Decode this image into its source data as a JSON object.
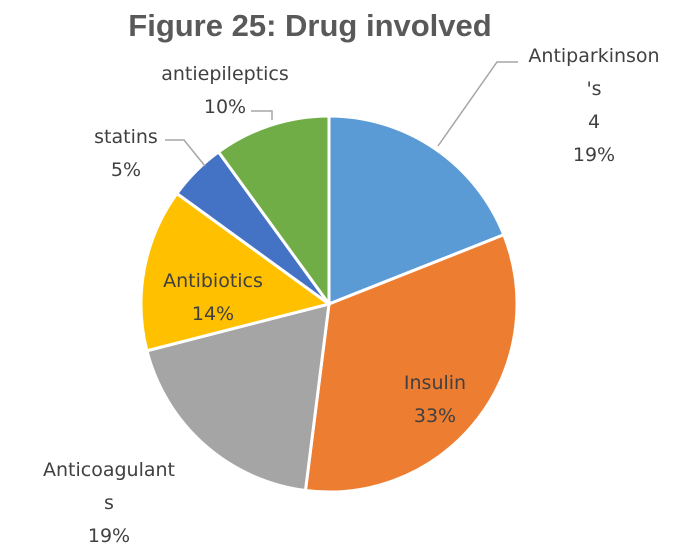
{
  "chart_data": {
    "type": "pie",
    "title": "Figure 25: Drug involved",
    "start_angle_deg": 0,
    "direction": "clockwise",
    "slices": [
      {
        "label": "Antiparkinson's 4",
        "label_lines": [
          "Antiparkinson",
          "'s",
          "4"
        ],
        "value": 19,
        "percent_label": "19%",
        "color": "#5b9bd5"
      },
      {
        "label": "Insulin",
        "label_lines": [
          "Insulin"
        ],
        "value": 33,
        "percent_label": "33%",
        "color": "#ed7d31"
      },
      {
        "label": "Anticoagulants",
        "label_lines": [
          "Anticoagulant",
          "s"
        ],
        "value": 19,
        "percent_label": "19%",
        "color": "#a5a5a5"
      },
      {
        "label": "Antibiotics",
        "label_lines": [
          "Antibiotics"
        ],
        "value": 14,
        "percent_label": "14%",
        "color": "#ffc000"
      },
      {
        "label": "statins",
        "label_lines": [
          "statins"
        ],
        "value": 5,
        "percent_label": "5%",
        "color": "#4472c4"
      },
      {
        "label": "antiepileptics",
        "label_lines": [
          "antiepileptics"
        ],
        "value": 10,
        "percent_label": "10%",
        "color": "#70ad47"
      }
    ]
  }
}
